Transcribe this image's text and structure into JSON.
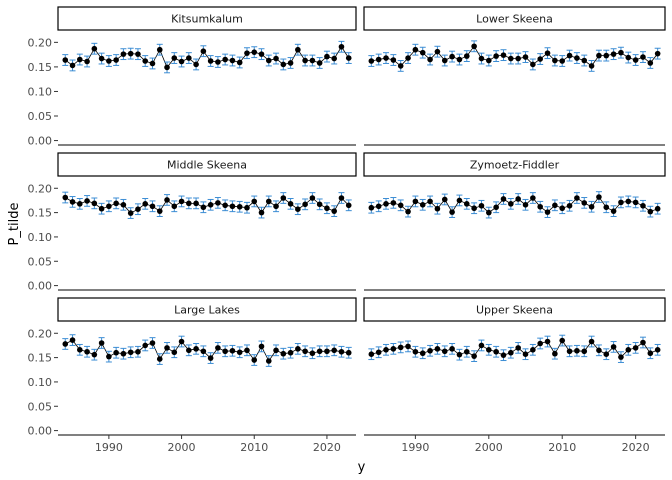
{
  "chart_data": {
    "type": "scatter",
    "xlabel": "y",
    "ylabel": "P_tilde",
    "ylim": [
      0.0,
      0.2
    ],
    "xlim": [
      1983,
      2024
    ],
    "y_ticks": [
      0.0,
      0.05,
      0.1,
      0.15,
      0.2
    ],
    "y_tick_labels": [
      "0.00",
      "0.05",
      "0.10",
      "0.15",
      "0.20"
    ],
    "x_ticks": [
      1990,
      2000,
      2010,
      2020
    ],
    "x_tick_labels": [
      "1990",
      "2000",
      "2010",
      "2020"
    ],
    "grid": false,
    "x": [
      1984,
      1985,
      1986,
      1987,
      1988,
      1989,
      1990,
      1991,
      1992,
      1993,
      1994,
      1995,
      1996,
      1997,
      1998,
      1999,
      2000,
      2001,
      2002,
      2003,
      2004,
      2005,
      2006,
      2007,
      2008,
      2009,
      2010,
      2011,
      2012,
      2013,
      2014,
      2015,
      2016,
      2017,
      2018,
      2019,
      2020,
      2021,
      2022,
      2023
    ],
    "panels": [
      {
        "name": "Kitsumkalum",
        "values": [
          0.164,
          0.153,
          0.165,
          0.161,
          0.187,
          0.167,
          0.162,
          0.164,
          0.176,
          0.177,
          0.176,
          0.162,
          0.157,
          0.185,
          0.149,
          0.168,
          0.161,
          0.168,
          0.155,
          0.182,
          0.162,
          0.16,
          0.165,
          0.163,
          0.159,
          0.178,
          0.18,
          0.176,
          0.163,
          0.167,
          0.155,
          0.158,
          0.185,
          0.163,
          0.163,
          0.158,
          0.171,
          0.167,
          0.191,
          0.168
        ]
      },
      {
        "name": "Lower Skeena",
        "values": [
          0.162,
          0.165,
          0.168,
          0.164,
          0.152,
          0.168,
          0.185,
          0.179,
          0.165,
          0.181,
          0.163,
          0.171,
          0.165,
          0.172,
          0.192,
          0.167,
          0.163,
          0.172,
          0.174,
          0.167,
          0.167,
          0.17,
          0.155,
          0.166,
          0.178,
          0.163,
          0.162,
          0.173,
          0.168,
          0.163,
          0.152,
          0.173,
          0.173,
          0.176,
          0.179,
          0.169,
          0.164,
          0.17,
          0.158,
          0.177
        ]
      },
      {
        "name": "Middle Skeena",
        "values": [
          0.181,
          0.172,
          0.168,
          0.174,
          0.169,
          0.158,
          0.163,
          0.169,
          0.166,
          0.149,
          0.157,
          0.168,
          0.163,
          0.153,
          0.176,
          0.163,
          0.173,
          0.169,
          0.169,
          0.161,
          0.166,
          0.17,
          0.165,
          0.163,
          0.162,
          0.16,
          0.173,
          0.15,
          0.173,
          0.163,
          0.18,
          0.168,
          0.157,
          0.167,
          0.18,
          0.167,
          0.159,
          0.153,
          0.18,
          0.165
        ]
      },
      {
        "name": "Zymoetz-Fiddler",
        "values": [
          0.16,
          0.163,
          0.168,
          0.17,
          0.165,
          0.152,
          0.173,
          0.166,
          0.173,
          0.158,
          0.177,
          0.151,
          0.175,
          0.168,
          0.159,
          0.164,
          0.15,
          0.161,
          0.178,
          0.168,
          0.178,
          0.166,
          0.18,
          0.162,
          0.151,
          0.165,
          0.159,
          0.164,
          0.18,
          0.17,
          0.162,
          0.182,
          0.161,
          0.153,
          0.171,
          0.173,
          0.171,
          0.164,
          0.152,
          0.158
        ]
      },
      {
        "name": "Large Lakes",
        "values": [
          0.178,
          0.186,
          0.166,
          0.162,
          0.156,
          0.18,
          0.152,
          0.16,
          0.158,
          0.161,
          0.162,
          0.175,
          0.18,
          0.147,
          0.17,
          0.161,
          0.183,
          0.165,
          0.168,
          0.163,
          0.149,
          0.17,
          0.163,
          0.164,
          0.161,
          0.165,
          0.145,
          0.173,
          0.143,
          0.165,
          0.158,
          0.16,
          0.168,
          0.163,
          0.159,
          0.163,
          0.163,
          0.165,
          0.162,
          0.16
        ]
      },
      {
        "name": "Upper Skeena",
        "values": [
          0.157,
          0.161,
          0.166,
          0.168,
          0.171,
          0.173,
          0.162,
          0.159,
          0.164,
          0.168,
          0.163,
          0.168,
          0.156,
          0.162,
          0.153,
          0.175,
          0.166,
          0.162,
          0.155,
          0.16,
          0.17,
          0.157,
          0.166,
          0.179,
          0.183,
          0.158,
          0.185,
          0.163,
          0.164,
          0.163,
          0.183,
          0.165,
          0.157,
          0.172,
          0.151,
          0.166,
          0.17,
          0.181,
          0.159,
          0.166
        ]
      }
    ],
    "error_half_width": 0.011,
    "colors": {
      "point": "#000000",
      "line": "#000000",
      "errorbar": "#3c8dd4",
      "axis": "#000000",
      "strip_border": "#000000",
      "strip_fill": "#ffffff",
      "tick_label": "#4d4d4d"
    }
  }
}
